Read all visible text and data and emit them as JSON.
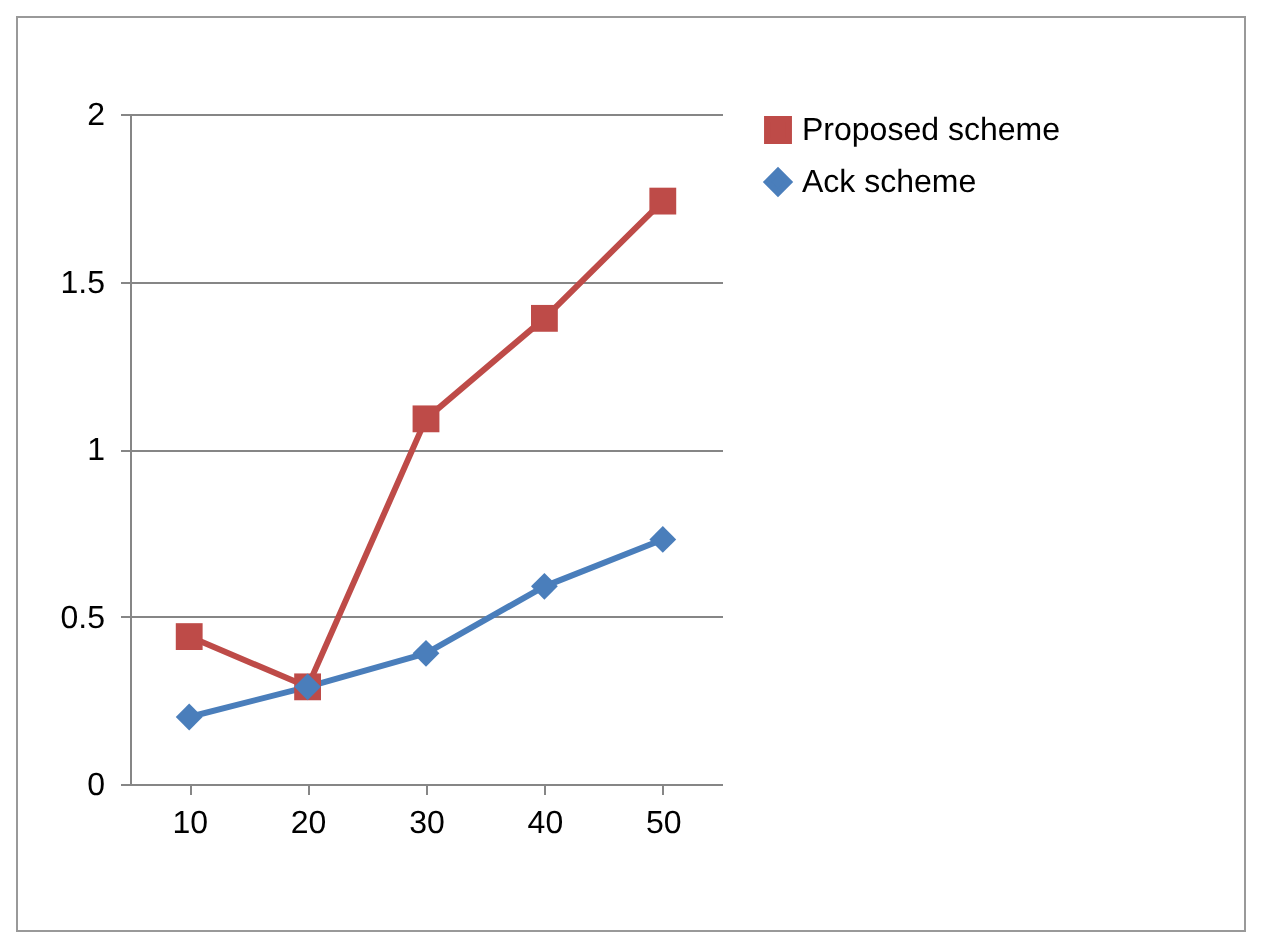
{
  "chart_data": {
    "type": "line",
    "categories": [
      "10",
      "20",
      "30",
      "40",
      "50"
    ],
    "series": [
      {
        "name": "Proposed scheme",
        "color": "#be4b48",
        "marker": "square",
        "values": [
          0.44,
          0.29,
          1.09,
          1.39,
          1.74
        ]
      },
      {
        "name": "Ack scheme",
        "color": "#4a7ebb",
        "marker": "diamond",
        "values": [
          0.2,
          0.29,
          0.39,
          0.59,
          0.73
        ]
      }
    ],
    "ylim": [
      0,
      2
    ],
    "yticks": [
      0,
      0.5,
      1,
      1.5,
      2
    ],
    "grid": "y",
    "legend": "right"
  }
}
